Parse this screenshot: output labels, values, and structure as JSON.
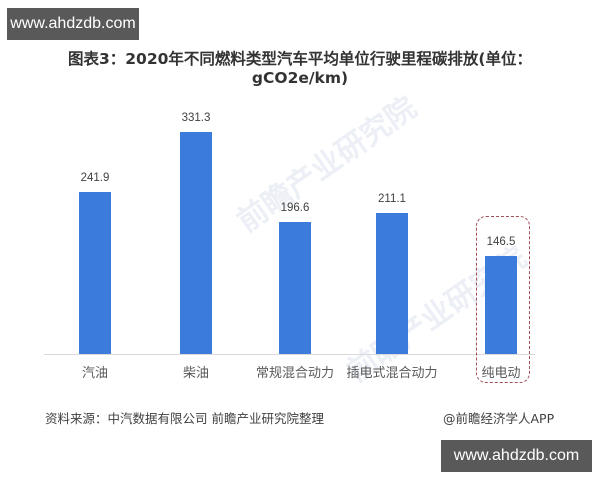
{
  "watermarks": {
    "top_badge": "www.ahdzdb.com",
    "bottom_badge": "www.ahdzdb.com",
    "faint_text": "前瞻产业研究院"
  },
  "title": "图表3：2020年不同燃料类型汽车平均单位行驶里程碳排放(单位：gCO2e/km)",
  "footer": {
    "source": "资料来源：中汽数据有限公司 前瞻产业研究院整理",
    "credit": "@前瞻经济学人APP"
  },
  "colors": {
    "bar": "#3a7bdc",
    "highlight_border": "#a0505a",
    "axis": "#d9d9d9"
  },
  "chart_data": {
    "type": "bar",
    "title": "图表3：2020年不同燃料类型汽车平均单位行驶里程碳排放(单位：gCO2e/km)",
    "xlabel": "",
    "ylabel": "gCO2e/km",
    "categories": [
      "汽油",
      "柴油",
      "常规混合动力",
      "插电式混合动力",
      "纯电动"
    ],
    "values": [
      241.9,
      331.3,
      196.6,
      211.1,
      146.5
    ],
    "value_labels": [
      "241.9",
      "331.3",
      "196.6",
      "211.1",
      "146.5"
    ],
    "ylim": [
      0,
      350
    ],
    "grid": false,
    "legend": null,
    "annotations": [
      "Dashed rounded box highlighting 纯电动 (146.5)"
    ],
    "source": "资料来源：中汽数据有限公司 前瞻产业研究院整理"
  }
}
